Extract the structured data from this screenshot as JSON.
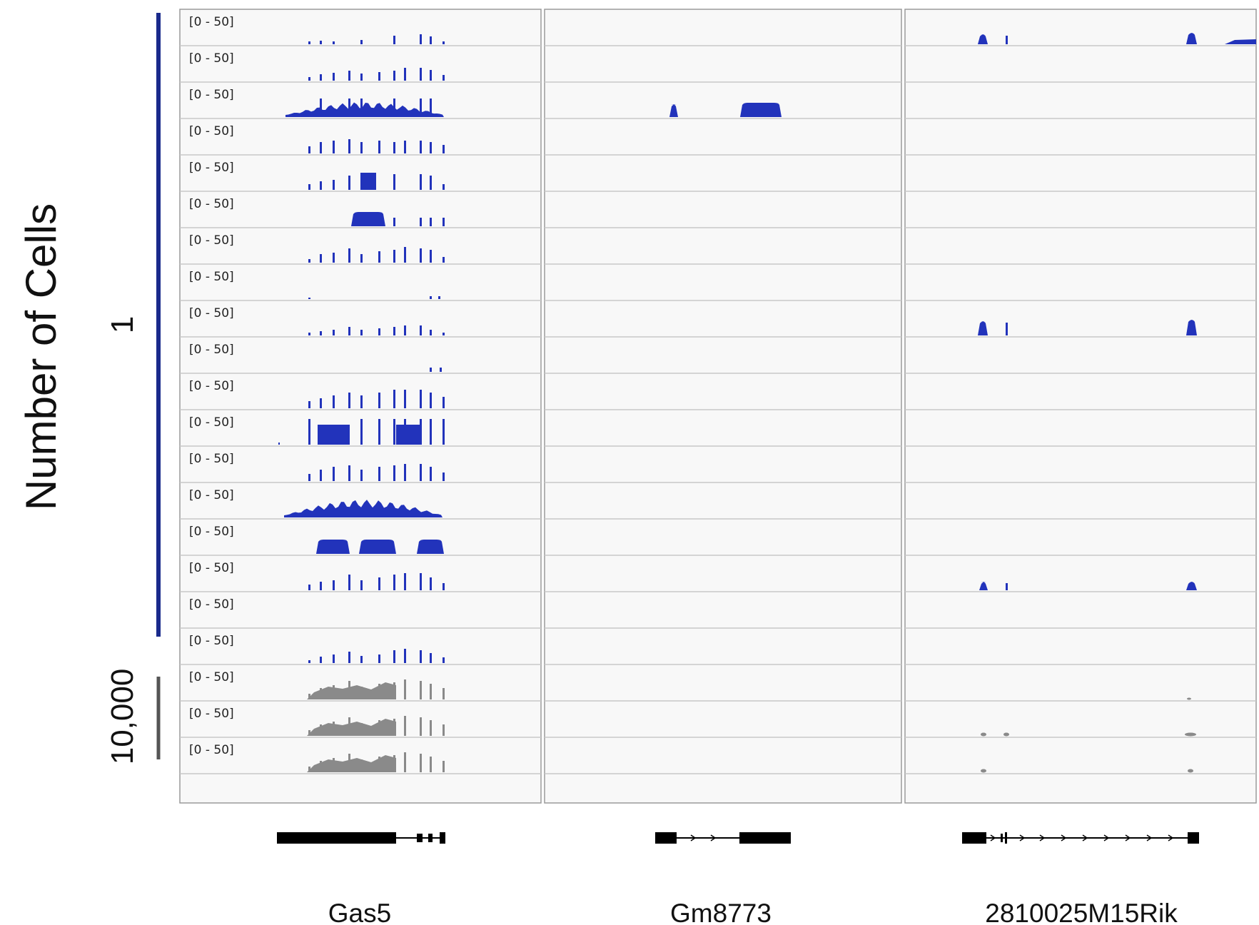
{
  "y_axis": {
    "title": "Number of Cells",
    "group_single": {
      "label": "1",
      "color": "#1a2a8c"
    },
    "group_bulk": {
      "label": "10,000",
      "color": "#555555"
    }
  },
  "track_range_label": "[0 - 50]",
  "colors": {
    "single_cell": "#2233bb",
    "bulk": "#8a8a8a",
    "gene_model": "#000000"
  },
  "panels": [
    {
      "gene": "Gas5"
    },
    {
      "gene": "Gm8773"
    },
    {
      "gene": "2810025M15Rik"
    }
  ],
  "chart_data": {
    "type": "genome-browser-coverage-tracks",
    "track_count": 21,
    "single_cell_tracks": 18,
    "bulk_tracks": 3,
    "track_range": [
      0,
      50
    ],
    "genes": [
      "Gas5",
      "Gm8773",
      "2810025M15Rik"
    ]
  }
}
